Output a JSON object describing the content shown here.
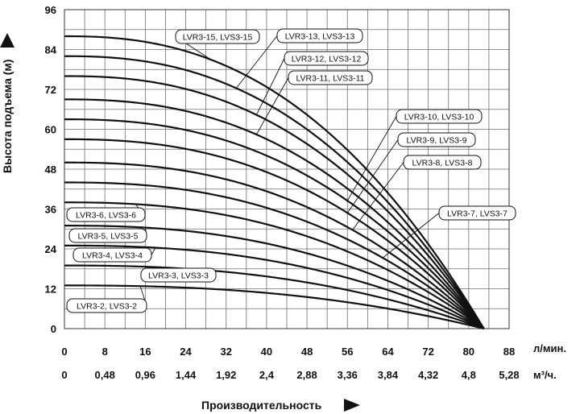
{
  "chart_data": {
    "type": "line",
    "ylabel": "Высота подъема (м)",
    "xlabel": "Производительность",
    "ylim": [
      0,
      96
    ],
    "y_ticks": [
      "0",
      "12",
      "24",
      "36",
      "48",
      "60",
      "72",
      "84",
      "96"
    ],
    "xlim": [
      0,
      88
    ],
    "x_ticks_lpm": [
      "0",
      "8",
      "16",
      "24",
      "32",
      "40",
      "48",
      "56",
      "64",
      "72",
      "80",
      "88"
    ],
    "x_unit_lpm": "л/мин.",
    "x_ticks_m3h": [
      "0",
      "0,48",
      "0,96",
      "1,44",
      "1,92",
      "2,4",
      "2,88",
      "3,36",
      "3,84",
      "4,32",
      "4,8",
      "5,28"
    ],
    "x_unit_m3h": "м³/ч.",
    "grid": true,
    "series": [
      {
        "name": "LVR3-15, LVS3-15",
        "x": [
          0,
          20,
          40,
          60,
          70,
          83
        ],
        "y": [
          88,
          84.5,
          74,
          56,
          43,
          0
        ]
      },
      {
        "name": "LVR3-13, LVS3-13",
        "x": [
          0,
          20,
          40,
          60,
          70,
          83
        ],
        "y": [
          82,
          78.5,
          68.5,
          52,
          40,
          0
        ]
      },
      {
        "name": "LVR3-12, LVS3-12",
        "x": [
          0,
          20,
          40,
          60,
          70,
          83
        ],
        "y": [
          76,
          72.5,
          63.5,
          48,
          37,
          0
        ]
      },
      {
        "name": "LVR3-11, LVS3-11",
        "x": [
          0,
          20,
          40,
          60,
          70,
          83
        ],
        "y": [
          69,
          66,
          57.5,
          44,
          34,
          0
        ]
      },
      {
        "name": "LVR3-10, LVS3-10",
        "x": [
          0,
          20,
          40,
          60,
          70,
          83
        ],
        "y": [
          63,
          60,
          52.5,
          40,
          31,
          0
        ]
      },
      {
        "name": "LVR3-9, LVS3-9",
        "x": [
          0,
          20,
          40,
          60,
          70,
          83
        ],
        "y": [
          57,
          54.5,
          47.5,
          36,
          28,
          0
        ]
      },
      {
        "name": "LVR3-8, LVS3-8",
        "x": [
          0,
          20,
          40,
          60,
          70,
          83
        ],
        "y": [
          50,
          48,
          42,
          32,
          25,
          0
        ]
      },
      {
        "name": "LVR3-7, LVS3-7",
        "x": [
          0,
          20,
          40,
          60,
          70,
          83
        ],
        "y": [
          44,
          42,
          36.5,
          28,
          21.5,
          0
        ]
      },
      {
        "name": "LVR3-6, LVS3-6",
        "x": [
          0,
          20,
          40,
          60,
          70,
          83
        ],
        "y": [
          38,
          36.5,
          31.5,
          24,
          18.5,
          0
        ]
      },
      {
        "name": "LVR3-5, LVS3-5",
        "x": [
          0,
          20,
          40,
          60,
          70,
          83
        ],
        "y": [
          31,
          30,
          26,
          20,
          15.5,
          0
        ]
      },
      {
        "name": "LVR3-4, LVS3-4",
        "x": [
          0,
          20,
          40,
          60,
          70,
          83
        ],
        "y": [
          25,
          24,
          21,
          16,
          12.5,
          0
        ]
      },
      {
        "name": "LVR3-3, LVS3-3",
        "x": [
          0,
          20,
          40,
          60,
          70,
          83
        ],
        "y": [
          19,
          18,
          15.5,
          12,
          9.5,
          0
        ]
      },
      {
        "name": "LVR3-2, LVS3-2",
        "x": [
          0,
          20,
          40,
          60,
          70,
          83
        ],
        "y": [
          13,
          12.5,
          10.5,
          8,
          6.5,
          0
        ]
      }
    ]
  }
}
